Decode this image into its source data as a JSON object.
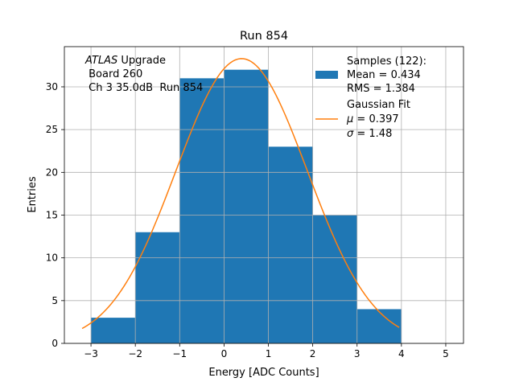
{
  "chart_data": {
    "type": "bar",
    "title": "Run 854",
    "xlabel": "Energy [ADC Counts]",
    "ylabel": "Entries",
    "xlim": [
      -3.6,
      5.4
    ],
    "ylim": [
      0,
      34.7
    ],
    "grid": true,
    "xticks": [
      -3,
      -2,
      -1,
      0,
      1,
      2,
      3,
      4,
      5
    ],
    "yticks": [
      0,
      5,
      10,
      15,
      20,
      25,
      30
    ],
    "bins": [
      {
        "x0": -3,
        "x1": -2,
        "count": 3
      },
      {
        "x0": -2,
        "x1": -1,
        "count": 13
      },
      {
        "x0": -1,
        "x1": 0,
        "count": 31
      },
      {
        "x0": 0,
        "x1": 1,
        "count": 32
      },
      {
        "x0": 1,
        "x1": 2,
        "count": 23
      },
      {
        "x0": 2,
        "x1": 3,
        "count": 15
      },
      {
        "x0": 3,
        "x1": 4,
        "count": 4
      }
    ],
    "fit": {
      "type": "gaussian",
      "mu": 0.397,
      "sigma": 1.48,
      "amplitude": 33.3,
      "x_range": [
        -3.2,
        3.95
      ]
    },
    "annotation": {
      "line1_italic": "ATLAS",
      "line1_rest": " Upgrade",
      "line2": " Board 260",
      "line3": " Ch 3 35.0dB  Run 854"
    },
    "legend": {
      "position": "top-right",
      "hist_title": "Samples (122):",
      "hist_mean": "Mean = 0.434",
      "hist_rms": "RMS = 1.384",
      "fit_title": "Gaussian Fit",
      "fit_mu_symbol": "μ",
      "fit_mu_value": " = 0.397",
      "fit_sigma_symbol": "σ",
      "fit_sigma_value": " = 1.48"
    },
    "colors": {
      "bars": "#1f77b4",
      "fit": "#ff7f0e",
      "grid": "#b0b0b0"
    }
  }
}
